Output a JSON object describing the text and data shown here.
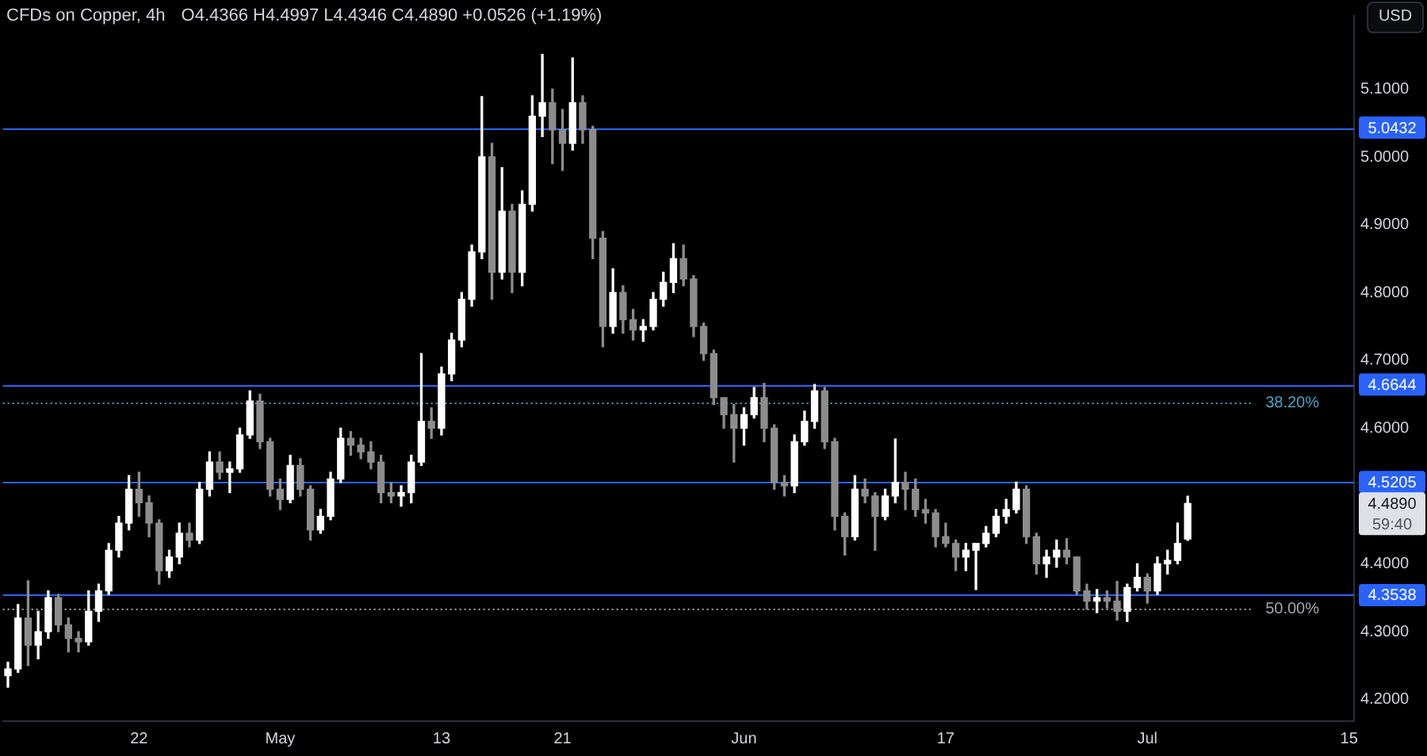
{
  "chart_data": {
    "type": "candlestick",
    "title": "CFDs on Copper, 4h",
    "subtitle": "O4.4366 H4.4997 L4.4346 C4.4890 +0.0526 (+1.19%)",
    "ylabel": "USD",
    "categories": [
      null,
      null,
      null,
      null,
      null,
      null,
      null,
      null,
      null,
      null,
      null,
      null,
      null,
      "22",
      null,
      null,
      null,
      null,
      null,
      null,
      null,
      null,
      null,
      null,
      null,
      null,
      null,
      "May",
      null,
      null,
      null,
      null,
      null,
      null,
      null,
      null,
      null,
      null,
      null,
      null,
      null,
      null,
      null,
      "13",
      null,
      null,
      null,
      null,
      null,
      null,
      null,
      null,
      null,
      null,
      null,
      "21",
      null,
      null,
      null,
      null,
      null,
      null,
      null,
      null,
      null,
      null,
      null,
      null,
      null,
      null,
      null,
      null,
      null,
      "Jun",
      null,
      null,
      null,
      null,
      null,
      null,
      null,
      null,
      null,
      null,
      null,
      null,
      null,
      null,
      null,
      null,
      null,
      null,
      null,
      "17",
      null,
      null,
      null,
      null,
      null,
      null,
      null,
      null,
      null,
      null,
      null,
      null,
      null,
      null,
      null,
      null,
      null,
      null,
      null,
      "Jul",
      null,
      null,
      null,
      null,
      null,
      null,
      null,
      null,
      null,
      null,
      null,
      null,
      null,
      null,
      null,
      null,
      null,
      null,
      null,
      "15"
    ],
    "ohlc": [
      [
        4.235,
        4.255,
        4.218,
        4.245
      ],
      [
        4.245,
        4.34,
        4.24,
        4.32
      ],
      [
        4.32,
        4.375,
        4.25,
        4.28
      ],
      [
        4.28,
        4.33,
        4.26,
        4.3
      ],
      [
        4.3,
        4.36,
        4.29,
        4.35
      ],
      [
        4.35,
        4.355,
        4.3,
        4.31
      ],
      [
        4.31,
        4.32,
        4.27,
        4.29
      ],
      [
        4.29,
        4.3,
        4.27,
        4.285
      ],
      [
        4.285,
        4.36,
        4.28,
        4.33
      ],
      [
        4.33,
        4.37,
        4.315,
        4.36
      ],
      [
        4.36,
        4.43,
        4.355,
        4.42
      ],
      [
        4.42,
        4.47,
        4.41,
        4.46
      ],
      [
        4.46,
        4.53,
        4.45,
        4.51
      ],
      [
        4.51,
        4.535,
        4.47,
        4.49
      ],
      [
        4.49,
        4.5,
        4.44,
        4.46
      ],
      [
        4.46,
        4.465,
        4.37,
        4.39
      ],
      [
        4.39,
        4.42,
        4.38,
        4.41
      ],
      [
        4.41,
        4.46,
        4.4,
        4.445
      ],
      [
        4.445,
        4.46,
        4.425,
        4.435
      ],
      [
        4.435,
        4.52,
        4.43,
        4.51
      ],
      [
        4.51,
        4.565,
        4.5,
        4.55
      ],
      [
        4.55,
        4.565,
        4.525,
        4.535
      ],
      [
        4.535,
        4.55,
        4.505,
        4.54
      ],
      [
        4.54,
        4.6,
        4.535,
        4.59
      ],
      [
        4.59,
        4.655,
        4.585,
        4.64
      ],
      [
        4.64,
        4.65,
        4.57,
        4.58
      ],
      [
        4.58,
        4.585,
        4.5,
        4.51
      ],
      [
        4.51,
        4.525,
        4.48,
        4.495
      ],
      [
        4.495,
        4.56,
        4.49,
        4.545
      ],
      [
        4.545,
        4.555,
        4.5,
        4.51
      ],
      [
        4.51,
        4.515,
        4.435,
        4.45
      ],
      [
        4.45,
        4.48,
        4.445,
        4.47
      ],
      [
        4.47,
        4.535,
        4.465,
        4.525
      ],
      [
        4.525,
        4.6,
        4.52,
        4.585
      ],
      [
        4.585,
        4.595,
        4.56,
        4.575
      ],
      [
        4.575,
        4.585,
        4.555,
        4.565
      ],
      [
        4.565,
        4.58,
        4.54,
        4.55
      ],
      [
        4.55,
        4.56,
        4.49,
        4.505
      ],
      [
        4.505,
        4.52,
        4.49,
        4.5
      ],
      [
        4.5,
        4.515,
        4.485,
        4.505
      ],
      [
        4.505,
        4.56,
        4.49,
        4.55
      ],
      [
        4.55,
        4.71,
        4.545,
        4.61
      ],
      [
        4.61,
        4.63,
        4.585,
        4.6
      ],
      [
        4.6,
        4.69,
        4.59,
        4.68
      ],
      [
        4.68,
        4.74,
        4.67,
        4.73
      ],
      [
        4.73,
        4.8,
        4.72,
        4.79
      ],
      [
        4.79,
        4.87,
        4.78,
        4.86
      ],
      [
        4.86,
        5.089,
        4.85,
        5.0
      ],
      [
        5.0,
        5.02,
        4.79,
        4.83
      ],
      [
        4.83,
        4.984,
        4.82,
        4.92
      ],
      [
        4.92,
        4.93,
        4.8,
        4.83
      ],
      [
        4.83,
        4.95,
        4.81,
        4.93
      ],
      [
        4.93,
        5.09,
        4.92,
        5.06
      ],
      [
        5.06,
        5.151,
        5.03,
        5.08
      ],
      [
        5.08,
        5.1,
        4.99,
        5.04
      ],
      [
        5.04,
        5.07,
        4.98,
        5.02
      ],
      [
        5.02,
        5.146,
        5.01,
        5.08
      ],
      [
        5.08,
        5.09,
        5.02,
        5.04
      ],
      [
        5.04,
        5.045,
        4.85,
        4.88
      ],
      [
        4.88,
        4.89,
        4.72,
        4.75
      ],
      [
        4.75,
        4.835,
        4.74,
        4.8
      ],
      [
        4.8,
        4.81,
        4.74,
        4.76
      ],
      [
        4.76,
        4.775,
        4.73,
        4.745
      ],
      [
        4.745,
        4.76,
        4.728,
        4.75
      ],
      [
        4.75,
        4.8,
        4.745,
        4.79
      ],
      [
        4.79,
        4.83,
        4.78,
        4.815
      ],
      [
        4.815,
        4.872,
        4.8,
        4.85
      ],
      [
        4.85,
        4.87,
        4.81,
        4.82
      ],
      [
        4.82,
        4.825,
        4.735,
        4.75
      ],
      [
        4.75,
        4.755,
        4.7,
        4.71
      ],
      [
        4.71,
        4.715,
        4.635,
        4.645
      ],
      [
        4.645,
        4.645,
        4.6,
        4.62
      ],
      [
        4.62,
        4.635,
        4.55,
        4.6
      ],
      [
        4.6,
        4.63,
        4.575,
        4.62
      ],
      [
        4.62,
        4.66,
        4.615,
        4.645
      ],
      [
        4.645,
        4.666,
        4.58,
        4.6
      ],
      [
        4.6,
        4.605,
        4.51,
        4.52
      ],
      [
        4.52,
        4.53,
        4.5,
        4.515
      ],
      [
        4.515,
        4.59,
        4.505,
        4.58
      ],
      [
        4.58,
        4.625,
        4.575,
        4.61
      ],
      [
        4.61,
        4.6644,
        4.6,
        4.655
      ],
      [
        4.655,
        4.66,
        4.57,
        4.58
      ],
      [
        4.58,
        4.585,
        4.45,
        4.47
      ],
      [
        4.47,
        4.475,
        4.413,
        4.44
      ],
      [
        4.44,
        4.53,
        4.435,
        4.51
      ],
      [
        4.51,
        4.525,
        4.49,
        4.5
      ],
      [
        4.5,
        4.505,
        4.42,
        4.47
      ],
      [
        4.47,
        4.51,
        4.465,
        4.5
      ],
      [
        4.5,
        4.584,
        4.49,
        4.52
      ],
      [
        4.52,
        4.535,
        4.48,
        4.51
      ],
      [
        4.51,
        4.525,
        4.47,
        4.48
      ],
      [
        4.48,
        4.495,
        4.46,
        4.475
      ],
      [
        4.475,
        4.48,
        4.425,
        4.44
      ],
      [
        4.44,
        4.46,
        4.425,
        4.43
      ],
      [
        4.43,
        4.435,
        4.39,
        4.41
      ],
      [
        4.41,
        4.43,
        4.39,
        4.42
      ],
      [
        4.42,
        4.43,
        4.362,
        4.43
      ],
      [
        4.43,
        4.455,
        4.425,
        4.445
      ],
      [
        4.445,
        4.48,
        4.44,
        4.47
      ],
      [
        4.47,
        4.495,
        4.46,
        4.48
      ],
      [
        4.48,
        4.5205,
        4.475,
        4.51
      ],
      [
        4.51,
        4.515,
        4.43,
        4.44
      ],
      [
        4.44,
        4.445,
        4.385,
        4.4
      ],
      [
        4.4,
        4.42,
        4.38,
        4.41
      ],
      [
        4.41,
        4.435,
        4.395,
        4.42
      ],
      [
        4.42,
        4.437,
        4.4,
        4.41
      ],
      [
        4.41,
        4.41,
        4.355,
        4.36
      ],
      [
        4.36,
        4.37,
        4.333,
        4.345
      ],
      [
        4.345,
        4.362,
        4.328,
        4.35
      ],
      [
        4.35,
        4.36,
        4.335,
        4.345
      ],
      [
        4.345,
        4.374,
        4.317,
        4.33
      ],
      [
        4.33,
        4.37,
        4.315,
        4.365
      ],
      [
        4.365,
        4.4,
        4.36,
        4.38
      ],
      [
        4.38,
        4.385,
        4.342,
        4.36
      ],
      [
        4.36,
        4.41,
        4.355,
        4.4
      ],
      [
        4.4,
        4.42,
        4.385,
        4.405
      ],
      [
        4.405,
        4.46,
        4.4,
        4.43
      ],
      [
        4.4366,
        4.4997,
        4.4346,
        4.489
      ],
      null,
      null,
      null,
      null,
      null,
      null,
      null,
      null,
      null,
      null,
      null,
      null,
      null,
      null,
      null,
      null
    ],
    "colors": [
      "#ffffff",
      "#ffffff",
      "#8c8c8c",
      "#ffffff",
      "#ffffff",
      "#8c8c8c",
      "#8c8c8c",
      "#8c8c8c",
      "#ffffff",
      "#ffffff",
      "#ffffff",
      "#ffffff",
      "#ffffff",
      "#8c8c8c",
      "#8c8c8c",
      "#8c8c8c",
      "#ffffff",
      "#ffffff",
      "#8c8c8c",
      "#ffffff",
      "#ffffff",
      "#8c8c8c",
      "#ffffff",
      "#ffffff",
      "#ffffff",
      "#8c8c8c",
      "#8c8c8c",
      "#8c8c8c",
      "#ffffff",
      "#8c8c8c",
      "#8c8c8c",
      "#ffffff",
      "#ffffff",
      "#ffffff",
      "#8c8c8c",
      "#8c8c8c",
      "#8c8c8c",
      "#8c8c8c",
      "#8c8c8c",
      "#ffffff",
      "#ffffff",
      "#ffffff",
      "#8c8c8c",
      "#ffffff",
      "#ffffff",
      "#ffffff",
      "#ffffff",
      "#ffffff",
      "#8c8c8c",
      "#ffffff",
      "#8c8c8c",
      "#ffffff",
      "#ffffff",
      "#ffffff",
      "#8c8c8c",
      "#8c8c8c",
      "#ffffff",
      "#8c8c8c",
      "#8c8c8c",
      "#8c8c8c",
      "#ffffff",
      "#8c8c8c",
      "#8c8c8c",
      "#ffffff",
      "#ffffff",
      "#ffffff",
      "#ffffff",
      "#8c8c8c",
      "#8c8c8c",
      "#8c8c8c",
      "#8c8c8c",
      "#8c8c8c",
      "#8c8c8c",
      "#ffffff",
      "#ffffff",
      "#8c8c8c",
      "#8c8c8c",
      "#8c8c8c",
      "#ffffff",
      "#ffffff",
      "#ffffff",
      "#8c8c8c",
      "#8c8c8c",
      "#8c8c8c",
      "#ffffff",
      "#8c8c8c",
      "#8c8c8c",
      "#ffffff",
      "#ffffff",
      "#8c8c8c",
      "#8c8c8c",
      "#8c8c8c",
      "#8c8c8c",
      "#8c8c8c",
      "#8c8c8c",
      "#ffffff",
      "#ffffff",
      "#ffffff",
      "#ffffff",
      "#ffffff",
      "#ffffff",
      "#8c8c8c",
      "#8c8c8c",
      "#ffffff",
      "#ffffff",
      "#8c8c8c",
      "#8c8c8c",
      "#8c8c8c",
      "#ffffff",
      "#8c8c8c",
      "#8c8c8c",
      "#ffffff",
      "#ffffff",
      "#8c8c8c",
      "#ffffff",
      "#ffffff",
      "#ffffff",
      "#ffffff",
      null,
      null,
      null,
      null,
      null,
      null,
      null,
      null,
      null,
      null,
      null,
      null,
      null,
      null,
      null,
      null
    ],
    "ylim": [
      4.168,
      5.208
    ],
    "yticks": [
      {
        "value": 5.1,
        "label": "5.1000"
      },
      {
        "value": 5.0,
        "label": "5.0000"
      },
      {
        "value": 4.9,
        "label": "4.9000"
      },
      {
        "value": 4.8,
        "label": "4.8000"
      },
      {
        "value": 4.7,
        "label": "4.7000"
      },
      {
        "value": 4.6,
        "label": "4.6000"
      },
      {
        "value": 4.4,
        "label": "4.4000"
      },
      {
        "value": 4.3,
        "label": "4.3000"
      },
      {
        "value": 4.2,
        "label": "4.2000"
      }
    ],
    "ref_lines": [
      {
        "axis": "y",
        "value": 5.0432,
        "label": "5.0432",
        "color": "#2962ff"
      },
      {
        "axis": "y",
        "value": 4.6644,
        "label": "4.6644",
        "color": "#2962ff"
      },
      {
        "axis": "y",
        "value": 4.5205,
        "label": "4.5205",
        "color": "#2962ff"
      },
      {
        "axis": "y",
        "value": 4.3538,
        "label": "4.3538",
        "color": "#2962ff"
      },
      {
        "axis": "y",
        "value": 4.637,
        "color": "#4aa3c4",
        "line_style": "dotted"
      },
      {
        "axis": "y",
        "value": 4.333,
        "color": "#a3a6af",
        "line_style": "dotted"
      }
    ],
    "annotations": [
      "38.20%",
      "50.00%",
      "4.4890",
      "59:40"
    ]
  }
}
